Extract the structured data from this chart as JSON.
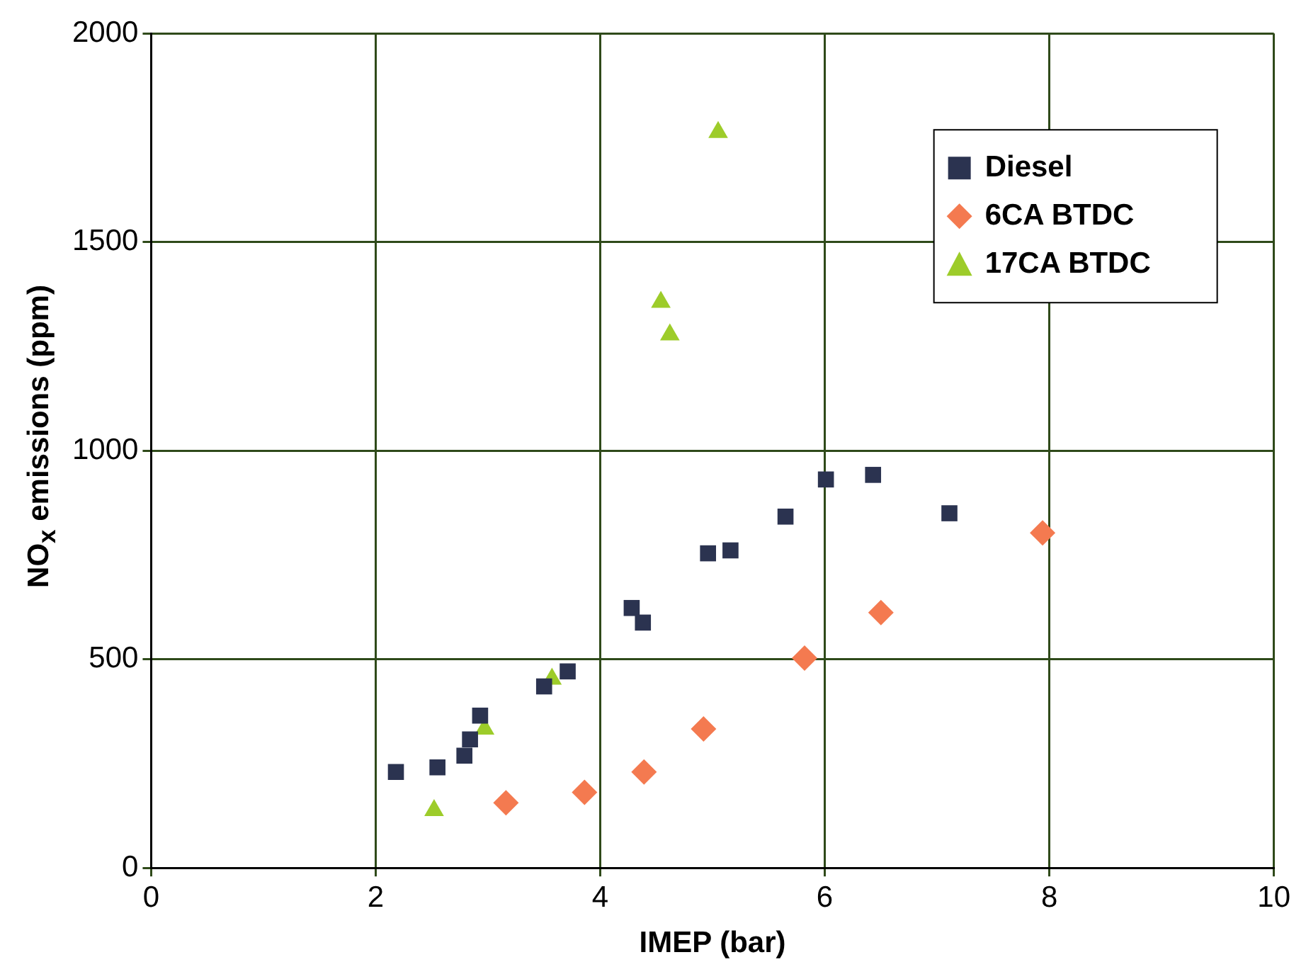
{
  "chart_data": {
    "type": "scatter",
    "xlabel": "IMEP (bar)",
    "ylabel": "NO$_{x}$ emissions (ppm)",
    "xlim": [
      0,
      10
    ],
    "xticks": [
      0,
      2,
      4,
      6,
      8,
      10
    ],
    "ylim": [
      0,
      2000
    ],
    "yticks": [
      0,
      500,
      1000,
      1500,
      2000
    ],
    "grid": true,
    "legend": "top right",
    "series": [
      {
        "name": "Diesel",
        "color": "#2b3350",
        "marker": "square",
        "x": [
          2.18,
          2.55,
          2.79,
          2.84,
          2.93,
          3.5,
          3.71,
          4.28,
          4.38,
          4.96,
          5.16,
          5.65,
          6.01,
          6.43,
          7.11
        ],
        "values": [
          230,
          241,
          269,
          308,
          365,
          435,
          471,
          623,
          588,
          754,
          761,
          842,
          931,
          942,
          850
        ]
      },
      {
        "name": "6CA BTDC",
        "color": "#f47a50",
        "marker": "diamond",
        "x": [
          3.16,
          3.86,
          4.39,
          4.92,
          5.82,
          6.5,
          7.94
        ],
        "values": [
          156,
          181,
          230,
          333,
          503,
          612,
          803
        ]
      },
      {
        "name": "17CA BTDC",
        "color": "#9dcc2a",
        "marker": "triangle",
        "x": [
          2.52,
          2.97,
          3.57,
          4.54,
          4.62,
          5.05
        ],
        "values": [
          138,
          333,
          453,
          1356,
          1278,
          1763
        ]
      }
    ]
  }
}
